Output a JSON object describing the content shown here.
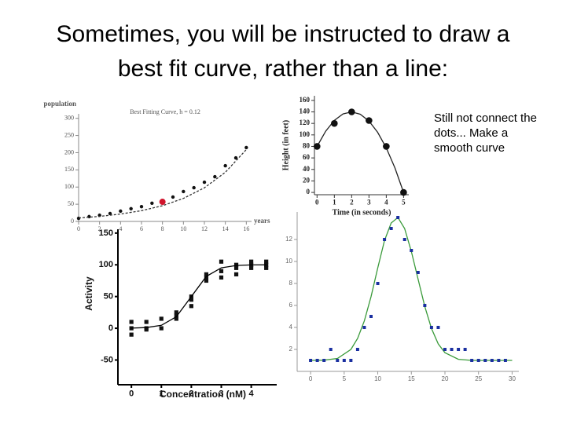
{
  "title": "Sometimes, you will be instructed to draw a best fit curve, rather than a line:",
  "note": "Still not connect the dots... Make a smooth curve",
  "chart_data": [
    {
      "type": "scatter",
      "title": "Best Fitting Curve, h = 0.12",
      "y_label": "population",
      "x_label": "years",
      "xlim": [
        0,
        16.5
      ],
      "ylim": [
        0,
        313
      ],
      "xticks": [
        0,
        2,
        4,
        6,
        8,
        10,
        12,
        14,
        16
      ],
      "yticks": [
        0,
        50,
        100,
        150,
        200,
        250,
        300
      ],
      "series": [
        {
          "mode": "markers",
          "marker": "circle",
          "color": "#111",
          "x": [
            0,
            1,
            2,
            3,
            4,
            5,
            6,
            7,
            9,
            10,
            11,
            12,
            13,
            14,
            15,
            16
          ],
          "values": [
            9,
            14,
            18,
            23,
            30,
            37,
            43,
            53,
            71,
            87,
            98,
            114,
            130,
            162,
            185,
            215
          ]
        },
        {
          "mode": "markers",
          "marker": "circle",
          "color": "#d0142c",
          "x": [
            8
          ],
          "values": [
            57
          ]
        },
        {
          "mode": "line",
          "dashed": true,
          "color": "#333",
          "x": [
            0,
            2,
            4,
            6,
            8,
            10,
            12,
            14,
            16
          ],
          "values": [
            10,
            14.6,
            21.4,
            31.3,
            45.7,
            66.9,
            97.8,
            143,
            209
          ]
        }
      ]
    },
    {
      "type": "scatter",
      "y_label": "Height (in feet)",
      "x_label": "Time (in seconds)",
      "xlim": [
        -0.15,
        5.3
      ],
      "ylim": [
        -4,
        168
      ],
      "xticks": [
        0,
        1,
        2,
        3,
        4,
        5
      ],
      "yticks": [
        0,
        20,
        40,
        60,
        80,
        100,
        120,
        140,
        160
      ],
      "series": [
        {
          "mode": "line",
          "color": "#222",
          "x": [
            0,
            0.5,
            1,
            1.5,
            2,
            2.5,
            3,
            3.5,
            4,
            4.5,
            5
          ],
          "values": [
            80,
            106.5,
            125.3,
            136.5,
            140,
            135.9,
            124,
            104.5,
            77.3,
            42.5,
            0
          ]
        },
        {
          "mode": "markers",
          "marker": "circle",
          "color": "#111",
          "x": [
            0,
            1,
            2,
            3,
            4,
            5
          ],
          "values": [
            80,
            120,
            140,
            125,
            80,
            0
          ]
        }
      ]
    },
    {
      "type": "scatter",
      "y_label": "Activity",
      "x_label": "Concentration (nM)",
      "xlim": [
        -0.45,
        4.85
      ],
      "ylim": [
        -89,
        156
      ],
      "xticks": [
        0,
        1,
        2,
        3,
        4
      ],
      "yticks": [
        -50,
        0,
        50,
        100,
        150
      ],
      "series": [
        {
          "mode": "markers",
          "marker": "square",
          "color": "#111",
          "x": [
            0,
            0,
            0,
            0.5,
            0.5,
            0.5,
            1,
            1,
            1.5,
            1.5,
            1.5,
            2,
            2,
            2,
            2.5,
            2.5,
            2.5,
            3,
            3,
            3,
            3.5,
            3.5,
            3.5,
            4,
            4,
            4,
            4.5,
            4.5,
            4.5
          ],
          "values": [
            10,
            0,
            -10,
            10,
            0,
            -2,
            15,
            0,
            25,
            20,
            15,
            50,
            45,
            35,
            85,
            80,
            75,
            105,
            90,
            80,
            100,
            95,
            85,
            105,
            100,
            95,
            105,
            100,
            95
          ]
        },
        {
          "mode": "line",
          "color": "#000",
          "x": [
            0,
            0.5,
            1,
            1.5,
            2,
            2.5,
            3,
            3.5,
            4,
            4.5
          ],
          "values": [
            0.2,
            1.1,
            4.7,
            18.2,
            50,
            81.8,
            95.3,
            98.9,
            99.8,
            100
          ]
        }
      ]
    },
    {
      "type": "scatter",
      "xlim": [
        -2,
        31
      ],
      "ylim": [
        0,
        14.5
      ],
      "xticks": [
        0,
        5,
        10,
        15,
        20,
        25,
        30
      ],
      "yticks": [
        2,
        4,
        6,
        8,
        10,
        12
      ],
      "series": [
        {
          "mode": "line",
          "color": "#3a9a3a",
          "x": [
            0,
            2,
            4,
            6,
            7,
            8,
            9,
            10,
            11,
            12,
            13,
            14,
            15,
            16,
            17,
            18,
            19,
            20,
            22,
            24,
            27,
            30
          ],
          "values": [
            1.0,
            1.02,
            1.18,
            2.0,
            3.0,
            4.6,
            6.8,
            9.4,
            11.9,
            13.5,
            14.0,
            13.0,
            10.9,
            8.4,
            5.9,
            3.9,
            2.5,
            1.7,
            1.1,
            1.0,
            1.0,
            1.0
          ]
        },
        {
          "mode": "markers",
          "marker": "square",
          "color": "#1a2fa0",
          "x": [
            0,
            1,
            2,
            3,
            4,
            5,
            6,
            7,
            8,
            9,
            10,
            11,
            12,
            13,
            14,
            15,
            16,
            17,
            18,
            19,
            20,
            21,
            22,
            23,
            24,
            25,
            26,
            27,
            28,
            29
          ],
          "values": [
            1,
            1,
            1,
            2,
            1,
            1,
            1,
            2,
            4,
            5,
            8,
            12,
            13,
            14,
            12,
            11,
            9,
            6,
            4,
            4,
            2,
            2,
            2,
            2,
            1,
            1,
            1,
            1,
            1,
            1
          ]
        }
      ]
    }
  ]
}
